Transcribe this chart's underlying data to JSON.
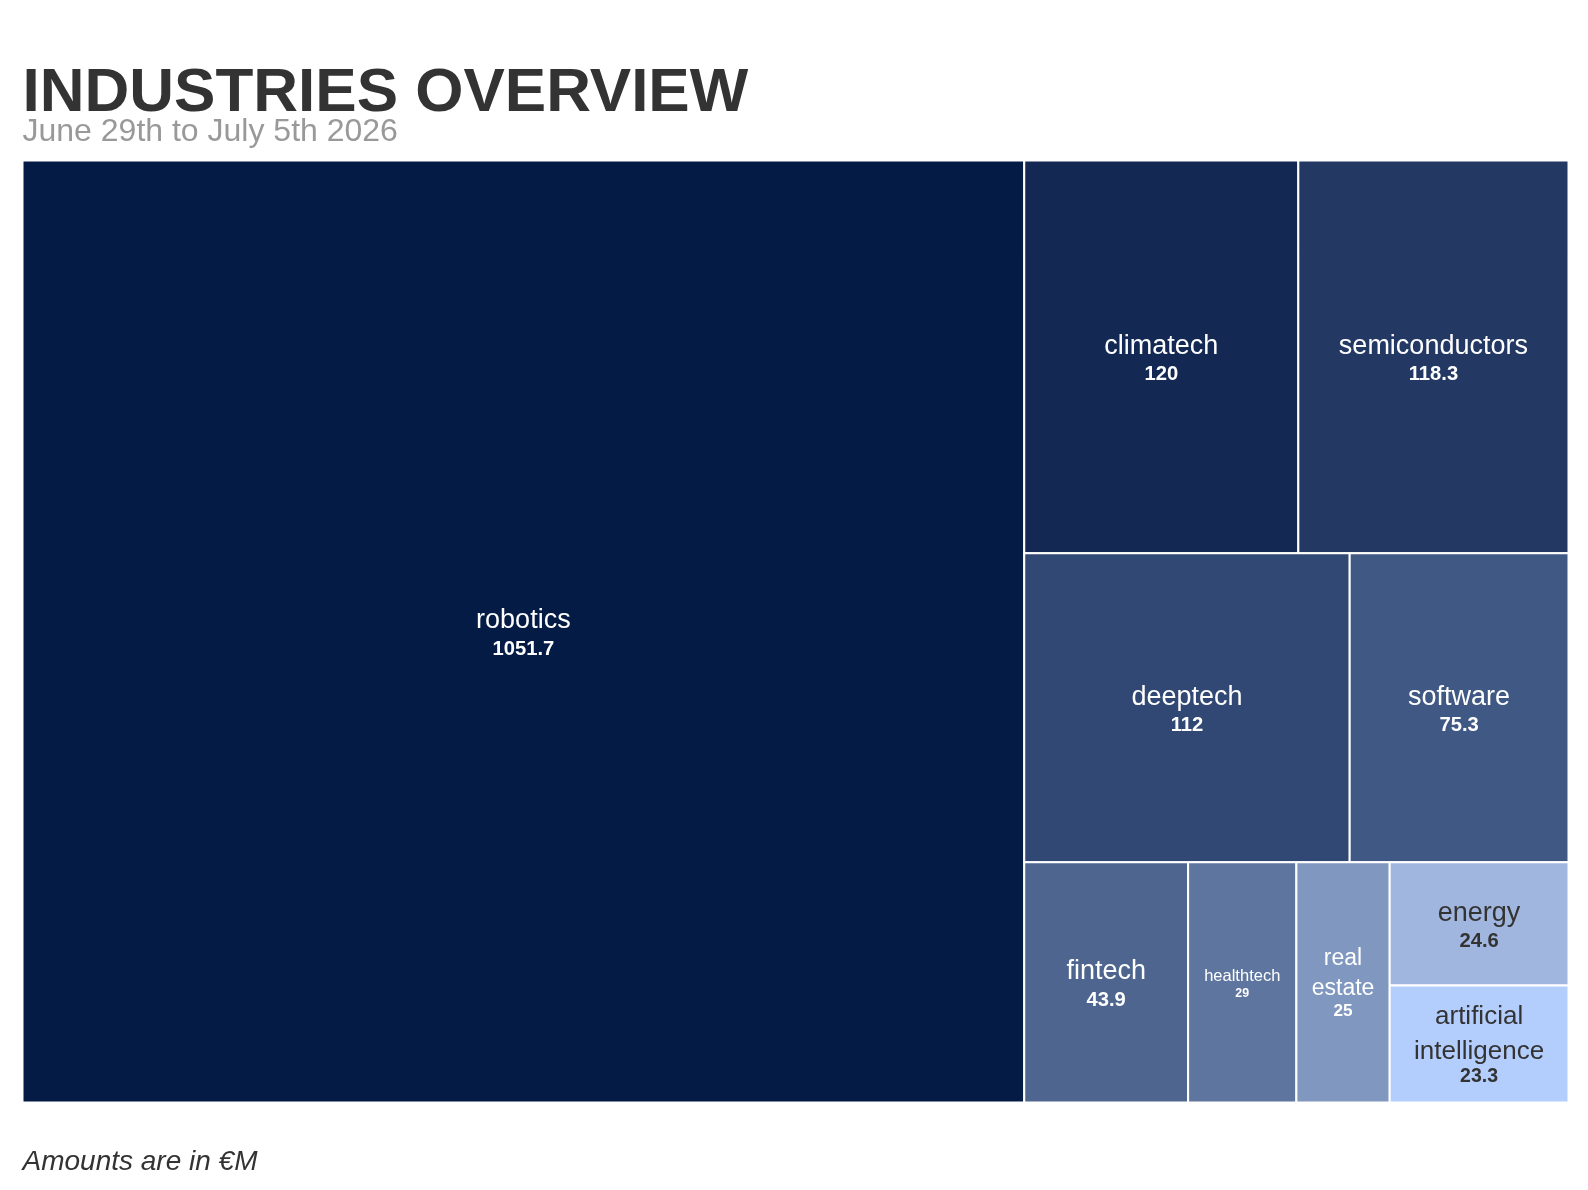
{
  "chart_data": {
    "type": "other",
    "title": "INDUSTRIES OVERVIEW",
    "subtitle": "June 29th to July 5th 2026",
    "categories": [
      "robotics",
      "climatech",
      "semiconductors",
      "deeptech",
      "software",
      "fintech",
      "healthtech",
      "real estate",
      "energy",
      "artificial intelligence"
    ],
    "values": [
      1051.7,
      120,
      118.3,
      112,
      75.3,
      43.9,
      29,
      25,
      24.6,
      23.3
    ],
    "colors": [
      "#031b45",
      "#132954",
      "#233964",
      "#304873",
      "#405884",
      "#4e668f",
      "#5e759f",
      "#8097c0",
      "#a1b6de",
      "#b3cdfd"
    ],
    "data_labels": true,
    "annotations": [
      "Amounts are in €M"
    ]
  }
}
